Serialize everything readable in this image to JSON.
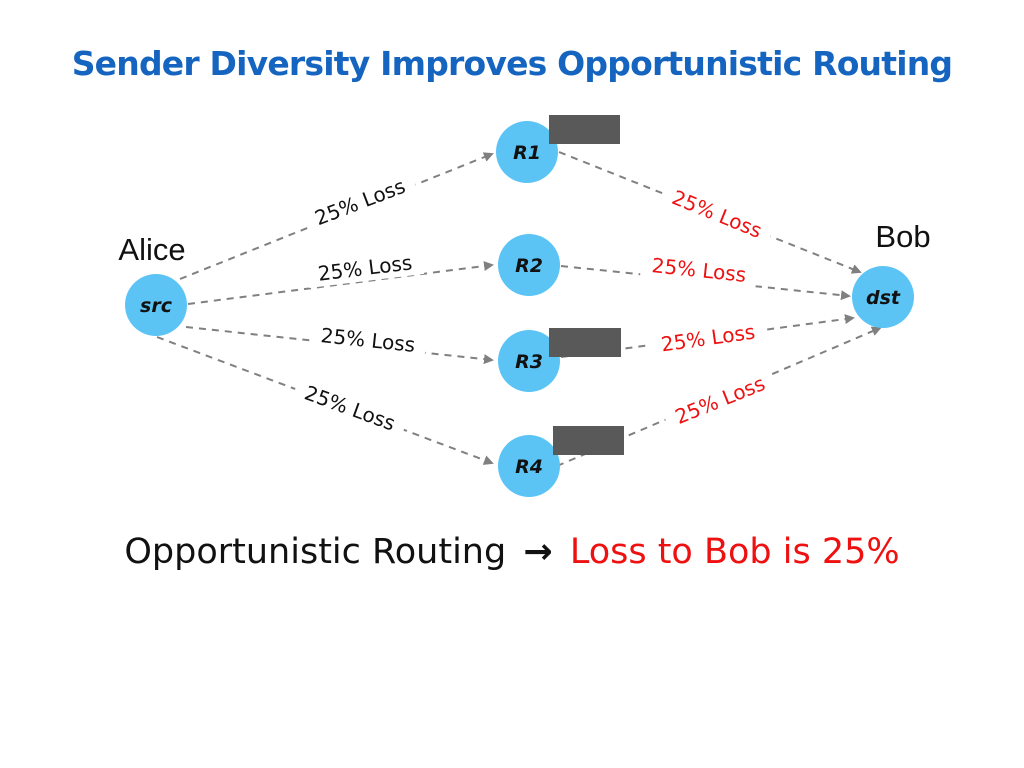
{
  "title": "Sender Diversity Improves Opportunistic Routing",
  "colors": {
    "title": "#1565c0",
    "accent": "#ee1111",
    "node": "#5bc4f5",
    "edge": "#808080",
    "text": "#111111"
  },
  "people": {
    "sender": "Alice",
    "receiver": "Bob"
  },
  "nodes": {
    "src": "src",
    "r1": "R1",
    "r2": "R2",
    "r3": "R3",
    "r4": "R4",
    "dst": "dst"
  },
  "edges": {
    "src_r1": "25% Loss",
    "src_r2": "25% Loss",
    "src_r3": "25% Loss",
    "src_r4": "25% Loss",
    "r1_dst": "25% Loss",
    "r2_dst": "25% Loss",
    "r3_dst": "25% Loss",
    "r4_dst": "25% Loss"
  },
  "caption": {
    "lead": "Opportunistic Routing",
    "arrow": "→",
    "result": "Loss to Bob is 25%"
  }
}
